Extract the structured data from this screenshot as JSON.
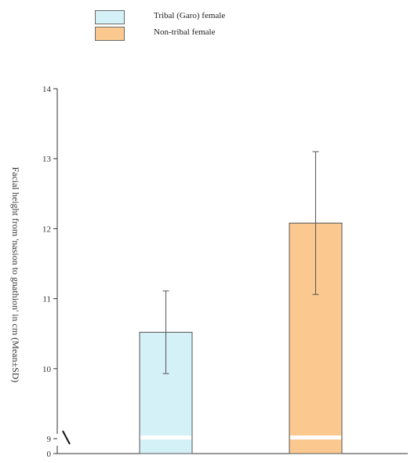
{
  "chart_data": {
    "type": "bar",
    "title": "",
    "xlabel": "",
    "ylabel": "Facial height from 'nasion to gnathion' in cm (Mean±SD)",
    "ylim": [
      9,
      14
    ],
    "axis_break": true,
    "y_ticks": [
      {
        "value": 0,
        "label": "0"
      },
      {
        "value": 9,
        "label": "9"
      },
      {
        "value": 10,
        "label": "10"
      },
      {
        "value": 11,
        "label": "11"
      },
      {
        "value": 12,
        "label": "12"
      },
      {
        "value": 13,
        "label": "13"
      },
      {
        "value": 14,
        "label": "14"
      }
    ],
    "legend_position": "top-left",
    "grid": false,
    "series": [
      {
        "name": "Tribal (Garo) female",
        "color": "#d4f1f7",
        "mean": 10.52,
        "sd": 0.59
      },
      {
        "name": "Non-tribal female",
        "color": "#fbc990",
        "mean": 12.08,
        "sd": 1.02
      }
    ]
  }
}
